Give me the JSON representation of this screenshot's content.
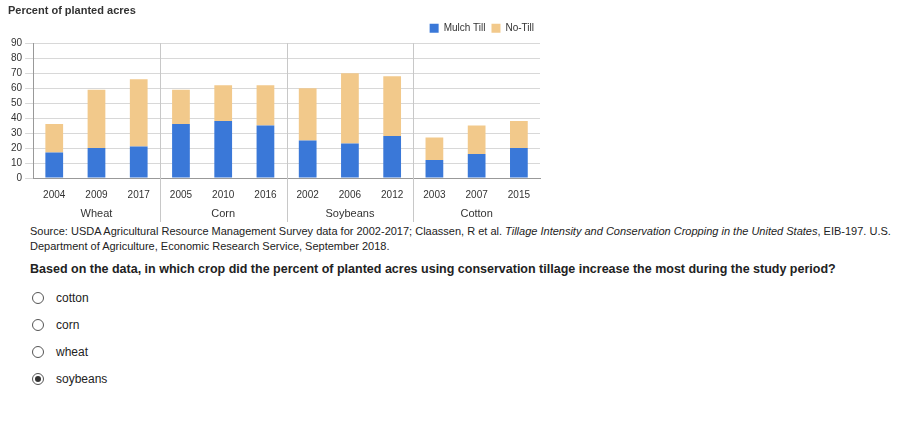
{
  "chart_data": {
    "type": "bar",
    "title": "Percent of planted acres",
    "groups": [
      {
        "name": "Wheat",
        "categories": [
          "2004",
          "2009",
          "2017"
        ]
      },
      {
        "name": "Corn",
        "categories": [
          "2005",
          "2010",
          "2016"
        ]
      },
      {
        "name": "Soybeans",
        "categories": [
          "2002",
          "2006",
          "2012"
        ]
      },
      {
        "name": "Cotton",
        "categories": [
          "2003",
          "2007",
          "2015"
        ]
      }
    ],
    "series": [
      {
        "name": "Mulch Till",
        "color": "#3a78d8",
        "values": [
          17,
          20,
          21,
          36,
          38,
          35,
          25,
          23,
          28,
          12,
          16,
          20
        ]
      },
      {
        "name": "No-Till",
        "color": "#f2c98b",
        "values": [
          19,
          39,
          45,
          23,
          24,
          27,
          35,
          47,
          40,
          15,
          19,
          18
        ]
      }
    ],
    "stacked": true,
    "legend": "top-right",
    "grid": true,
    "ylim": [
      0,
      90
    ],
    "yticks": [
      0,
      10,
      20,
      30,
      40,
      50,
      60,
      70,
      80,
      90
    ]
  },
  "source": [
    {
      "text": "Source: USDA Agricultural Resource Management Survey data for 2002-2017; Claassen, R et al. ",
      "style": "normal"
    },
    {
      "text": "Tillage Intensity and Conservation Cropping in the United States",
      "style": "italic"
    },
    {
      "text": ", EIB-197. U.S. Department of Agriculture, Economic Research Service, September 2018.",
      "style": "normal"
    }
  ],
  "question": "Based on the data, in which crop did the percent of planted acres using conservation tillage increase the most during the study period?",
  "options": [
    "cotton",
    "corn",
    "wheat",
    "soybeans"
  ],
  "selected": "soybeans"
}
